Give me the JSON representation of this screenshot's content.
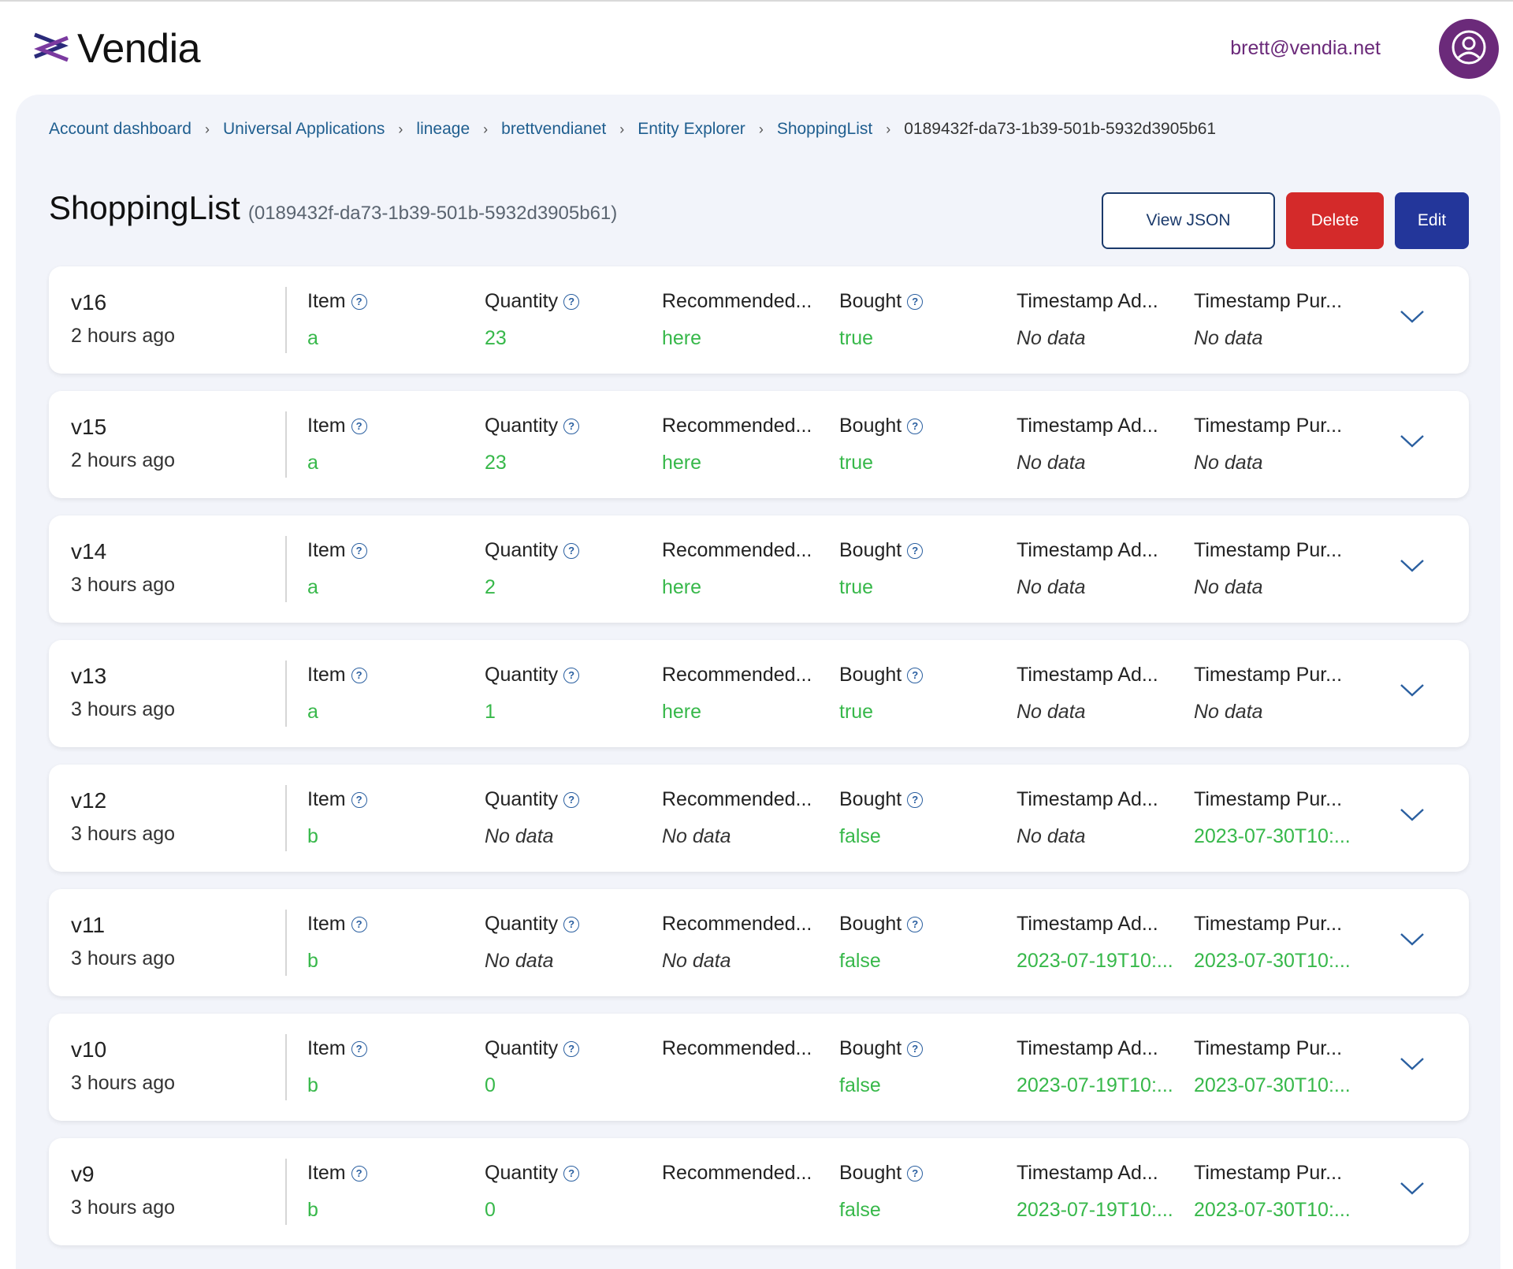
{
  "app": {
    "logo_text": "Vendia",
    "user_email": "brett@vendia.net"
  },
  "breadcrumb": [
    "Account dashboard",
    "Universal Applications",
    "lineage",
    "brettvendianet",
    "Entity Explorer",
    "ShoppingList",
    "0189432f-da73-1b39-501b-5932d3905b61"
  ],
  "page": {
    "title": "ShoppingList",
    "subtitle": "(0189432f-da73-1b39-501b-5932d3905b61)"
  },
  "actions": {
    "view_json": "View JSON",
    "delete": "Delete",
    "edit": "Edit"
  },
  "columns": [
    "Item",
    "Quantity",
    "Recommended...",
    "Bought",
    "Timestamp Ad...",
    "Timestamp Pur..."
  ],
  "columns_with_help": [
    true,
    true,
    false,
    true,
    false,
    false
  ],
  "versions": [
    {
      "version": "v16",
      "ago": "2 hours ago",
      "values": [
        "a",
        "23",
        "here",
        "true",
        "No data",
        "No data"
      ]
    },
    {
      "version": "v15",
      "ago": "2 hours ago",
      "values": [
        "a",
        "23",
        "here",
        "true",
        "No data",
        "No data"
      ]
    },
    {
      "version": "v14",
      "ago": "3 hours ago",
      "values": [
        "a",
        "2",
        "here",
        "true",
        "No data",
        "No data"
      ]
    },
    {
      "version": "v13",
      "ago": "3 hours ago",
      "values": [
        "a",
        "1",
        "here",
        "true",
        "No data",
        "No data"
      ]
    },
    {
      "version": "v12",
      "ago": "3 hours ago",
      "values": [
        "b",
        "No data",
        "No data",
        "false",
        "No data",
        "2023-07-30T10:..."
      ]
    },
    {
      "version": "v11",
      "ago": "3 hours ago",
      "values": [
        "b",
        "No data",
        "No data",
        "false",
        "2023-07-19T10:...",
        "2023-07-30T10:..."
      ]
    },
    {
      "version": "v10",
      "ago": "3 hours ago",
      "values": [
        "b",
        "0",
        "",
        "false",
        "2023-07-19T10:...",
        "2023-07-30T10:..."
      ]
    },
    {
      "version": "v9",
      "ago": "3 hours ago",
      "values": [
        "b",
        "0",
        "",
        "false",
        "2023-07-19T10:...",
        "2023-07-30T10:..."
      ]
    }
  ],
  "empty_text": "No data",
  "colors": {
    "brand": "#6b2a7a",
    "value_green": "#37b84a",
    "delete_red": "#d42a2a",
    "edit_blue": "#23369a"
  },
  "icons": {
    "logo": "vendia-logo-icon",
    "avatar": "user-circle-icon",
    "help": "question-circle-icon",
    "expand": "chevron-down-icon",
    "breadcrumb_separator": "chevron-right-icon"
  }
}
